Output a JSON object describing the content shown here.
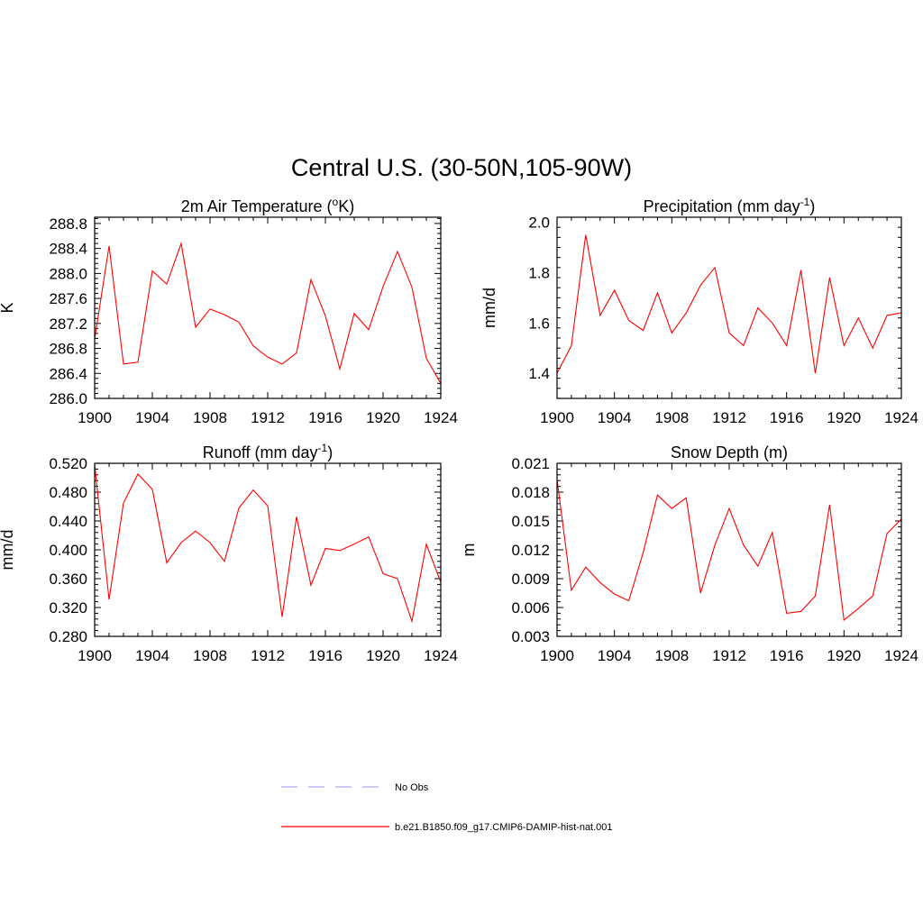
{
  "figure": {
    "title": "Central U.S. (30-50N,105-90W)"
  },
  "legend": [
    {
      "label": "No Obs",
      "color": "#aaaaee",
      "dash": true
    },
    {
      "label": "b.e21.B1850.f09_g17.CMIP6-DAMIP-hist-nat.001",
      "color": "#ff0000",
      "dash": false
    }
  ],
  "chart_data": [
    {
      "type": "line",
      "title": "2m Air Temperature (°K)",
      "title_parts": {
        "pre": "2m Air Temperature (",
        "sup": "o",
        "post": "K)"
      },
      "xlabel": "",
      "ylabel": "K",
      "xlim": [
        1900,
        1924
      ],
      "ylim": [
        286.0,
        288.9
      ],
      "xticks": [
        1900,
        1904,
        1908,
        1912,
        1916,
        1920,
        1924
      ],
      "yticks": [
        "286.0",
        "286.4",
        "286.8",
        "287.2",
        "287.6",
        "288.0",
        "288.4",
        "288.8"
      ],
      "series": [
        {
          "color": "#ff0000",
          "x": [
            1900,
            1901,
            1902,
            1903,
            1904,
            1905,
            1906,
            1907,
            1908,
            1909,
            1910,
            1911,
            1912,
            1913,
            1914,
            1915,
            1916,
            1917,
            1918,
            1919,
            1920,
            1921,
            1922,
            1923,
            1924
          ],
          "values": [
            286.95,
            288.44,
            286.55,
            286.58,
            288.04,
            287.83,
            288.48,
            287.14,
            287.43,
            287.34,
            287.22,
            286.84,
            286.66,
            286.55,
            286.73,
            287.9,
            287.32,
            286.47,
            287.36,
            287.1,
            287.79,
            288.35,
            287.78,
            286.64,
            286.24
          ]
        }
      ]
    },
    {
      "type": "line",
      "title": "Precipitation (mm day-1)",
      "title_parts": {
        "pre": "Precipitation (mm day",
        "sup": "-1",
        "post": ")"
      },
      "xlabel": "",
      "ylabel": "mm/d",
      "xlim": [
        1900,
        1924
      ],
      "ylim": [
        1.3,
        2.02
      ],
      "xticks": [
        1900,
        1904,
        1908,
        1912,
        1916,
        1920,
        1924
      ],
      "yticks": [
        "1.4",
        "1.6",
        "1.8",
        "2.0"
      ],
      "series": [
        {
          "color": "#ff0000",
          "x": [
            1900,
            1901,
            1902,
            1903,
            1904,
            1905,
            1906,
            1907,
            1908,
            1909,
            1910,
            1911,
            1912,
            1913,
            1914,
            1915,
            1916,
            1917,
            1918,
            1919,
            1920,
            1921,
            1922,
            1923,
            1924
          ],
          "values": [
            1.4,
            1.51,
            1.95,
            1.63,
            1.73,
            1.61,
            1.57,
            1.72,
            1.56,
            1.64,
            1.75,
            1.82,
            1.56,
            1.51,
            1.66,
            1.6,
            1.51,
            1.81,
            1.4,
            1.78,
            1.51,
            1.62,
            1.5,
            1.63,
            1.64
          ]
        }
      ]
    },
    {
      "type": "line",
      "title": "Runoff (mm day-1)",
      "title_parts": {
        "pre": "Runoff (mm day",
        "sup": "-1",
        "post": ")"
      },
      "xlabel": "",
      "ylabel": "mm/d",
      "xlim": [
        1900,
        1924
      ],
      "ylim": [
        0.28,
        0.52
      ],
      "xticks": [
        1900,
        1904,
        1908,
        1912,
        1916,
        1920,
        1924
      ],
      "yticks": [
        "0.280",
        "0.320",
        "0.360",
        "0.400",
        "0.440",
        "0.480",
        "0.520"
      ],
      "series": [
        {
          "color": "#ff0000",
          "x": [
            1900,
            1901,
            1902,
            1903,
            1904,
            1905,
            1906,
            1907,
            1908,
            1909,
            1910,
            1911,
            1912,
            1913,
            1914,
            1915,
            1916,
            1917,
            1918,
            1919,
            1920,
            1921,
            1922,
            1923,
            1924
          ],
          "values": [
            0.518,
            0.331,
            0.465,
            0.505,
            0.484,
            0.382,
            0.41,
            0.426,
            0.41,
            0.384,
            0.458,
            0.483,
            0.461,
            0.307,
            0.446,
            0.351,
            0.402,
            0.399,
            0.408,
            0.418,
            0.367,
            0.36,
            0.301,
            0.408,
            0.355
          ]
        }
      ]
    },
    {
      "type": "line",
      "title": "Snow Depth (m)",
      "title_parts": {
        "pre": "Snow Depth (m)",
        "sup": "",
        "post": ""
      },
      "xlabel": "",
      "ylabel": "m",
      "xlim": [
        1900,
        1924
      ],
      "ylim": [
        0.003,
        0.021
      ],
      "xticks": [
        1900,
        1904,
        1908,
        1912,
        1916,
        1920,
        1924
      ],
      "yticks": [
        "0.003",
        "0.006",
        "0.009",
        "0.012",
        "0.015",
        "0.018",
        "0.021"
      ],
      "series": [
        {
          "color": "#ff0000",
          "x": [
            1900,
            1901,
            1902,
            1903,
            1904,
            1905,
            1906,
            1907,
            1908,
            1909,
            1910,
            1911,
            1912,
            1913,
            1914,
            1915,
            1916,
            1917,
            1918,
            1919,
            1920,
            1921,
            1922,
            1923,
            1924
          ],
          "values": [
            0.0193,
            0.0078,
            0.0102,
            0.0086,
            0.0074,
            0.0067,
            0.0117,
            0.0177,
            0.0163,
            0.0174,
            0.0075,
            0.0125,
            0.0163,
            0.0125,
            0.0103,
            0.0138,
            0.0054,
            0.0056,
            0.0072,
            0.0167,
            0.0047,
            0.0059,
            0.0072,
            0.0137,
            0.0152
          ]
        }
      ]
    }
  ]
}
